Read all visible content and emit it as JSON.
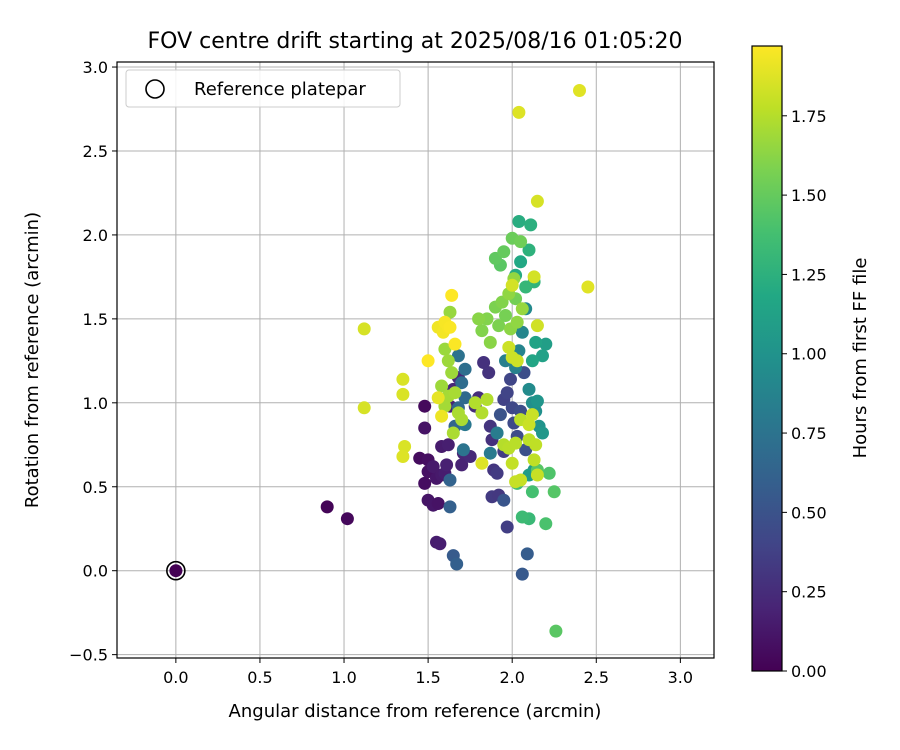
{
  "chart_data": {
    "type": "scatter",
    "title": "FOV centre drift starting at 2025/08/16 01:05:20",
    "xlabel": "Angular distance from reference (arcmin)",
    "ylabel": "Rotation from reference (arcmin)",
    "xlim": [
      -0.35,
      3.2
    ],
    "ylim": [
      -0.52,
      3.03
    ],
    "xticks": [
      0.0,
      0.5,
      1.0,
      1.5,
      2.0,
      2.5,
      3.0
    ],
    "xtick_labels": [
      "0.0",
      "0.5",
      "1.0",
      "1.5",
      "2.0",
      "2.5",
      "3.0"
    ],
    "yticks": [
      -0.5,
      0.0,
      0.5,
      1.0,
      1.5,
      2.0,
      2.5,
      3.0
    ],
    "ytick_labels": [
      "−0.5",
      "0.0",
      "0.5",
      "1.0",
      "1.5",
      "2.0",
      "2.5",
      "3.0"
    ],
    "grid": true,
    "legend": {
      "placement": "top-left",
      "entries": [
        "Reference platepar"
      ]
    },
    "reference_point": {
      "x": 0.0,
      "y": 0.0
    },
    "colorbar": {
      "label": "Hours from first FF file",
      "min": 0.0,
      "max": 1.97,
      "ticks": [
        0.0,
        0.25,
        0.5,
        0.75,
        1.0,
        1.25,
        1.5,
        1.75
      ],
      "tick_labels": [
        "0.00",
        "0.25",
        "0.50",
        "0.75",
        "1.00",
        "1.25",
        "1.50",
        "1.75"
      ],
      "colormap": "viridis"
    },
    "point_fields": [
      "x",
      "y",
      "hours"
    ],
    "points": [
      [
        0.0,
        0.0,
        0.0
      ],
      [
        0.9,
        0.38,
        0.02
      ],
      [
        1.02,
        0.31,
        0.04
      ],
      [
        1.48,
        0.98,
        0.05
      ],
      [
        1.45,
        0.67,
        0.06
      ],
      [
        1.5,
        0.66,
        0.08
      ],
      [
        1.48,
        0.52,
        0.07
      ],
      [
        1.5,
        0.59,
        0.09
      ],
      [
        1.48,
        0.85,
        0.1
      ],
      [
        1.5,
        0.42,
        0.11
      ],
      [
        1.53,
        0.39,
        0.12
      ],
      [
        1.56,
        0.4,
        0.1
      ],
      [
        1.55,
        0.55,
        0.12
      ],
      [
        1.53,
        0.62,
        0.14
      ],
      [
        1.55,
        0.17,
        0.15
      ],
      [
        1.57,
        0.16,
        0.16
      ],
      [
        1.58,
        0.57,
        0.14
      ],
      [
        1.6,
        0.58,
        0.16
      ],
      [
        1.61,
        0.63,
        0.18
      ],
      [
        1.58,
        0.74,
        0.15
      ],
      [
        1.62,
        0.75,
        0.17
      ],
      [
        1.63,
        0.98,
        0.19
      ],
      [
        1.7,
        0.63,
        0.2
      ],
      [
        1.71,
        0.7,
        0.21
      ],
      [
        1.65,
        1.08,
        0.22
      ],
      [
        1.68,
        1.15,
        0.24
      ],
      [
        1.75,
        0.68,
        0.23
      ],
      [
        1.78,
        0.98,
        0.25
      ],
      [
        1.8,
        1.03,
        0.26
      ],
      [
        1.83,
        1.24,
        0.28
      ],
      [
        1.86,
        1.18,
        0.29
      ],
      [
        1.87,
        0.86,
        0.3
      ],
      [
        1.88,
        0.78,
        0.27
      ],
      [
        1.89,
        0.6,
        0.31
      ],
      [
        1.88,
        0.44,
        0.33
      ],
      [
        1.92,
        0.45,
        0.32
      ],
      [
        1.91,
        0.58,
        0.34
      ],
      [
        1.95,
        0.71,
        0.35
      ],
      [
        1.97,
        0.26,
        0.36
      ],
      [
        1.95,
        1.02,
        0.38
      ],
      [
        1.97,
        1.06,
        0.4
      ],
      [
        1.99,
        1.14,
        0.41
      ],
      [
        2.0,
        0.97,
        0.42
      ],
      [
        2.01,
        0.88,
        0.44
      ],
      [
        2.03,
        0.8,
        0.45
      ],
      [
        2.05,
        0.95,
        0.46
      ],
      [
        2.07,
        1.18,
        0.47
      ],
      [
        2.08,
        0.72,
        0.48
      ],
      [
        1.93,
        0.93,
        0.5
      ],
      [
        1.95,
        0.42,
        0.52
      ],
      [
        2.06,
        -0.02,
        0.55
      ],
      [
        2.09,
        0.1,
        0.58
      ],
      [
        1.65,
        0.09,
        0.56
      ],
      [
        1.67,
        0.04,
        0.6
      ],
      [
        1.63,
        0.38,
        0.6
      ],
      [
        1.63,
        0.54,
        0.62
      ],
      [
        1.66,
        0.86,
        0.64
      ],
      [
        1.68,
        0.97,
        0.66
      ],
      [
        1.72,
        1.03,
        0.68
      ],
      [
        1.7,
        1.12,
        0.7
      ],
      [
        1.72,
        1.2,
        0.72
      ],
      [
        1.68,
        1.28,
        0.74
      ],
      [
        1.71,
        0.72,
        0.76
      ],
      [
        1.72,
        0.87,
        0.78
      ],
      [
        1.87,
        0.7,
        0.8
      ],
      [
        1.91,
        0.82,
        0.82
      ],
      [
        1.96,
        1.25,
        0.84
      ],
      [
        2.02,
        1.21,
        0.86
      ],
      [
        2.04,
        1.31,
        0.88
      ],
      [
        2.06,
        1.42,
        0.9
      ],
      [
        2.08,
        1.56,
        0.92
      ],
      [
        2.1,
        1.08,
        0.94
      ],
      [
        2.12,
        1.0,
        0.96
      ],
      [
        2.14,
        0.95,
        0.98
      ],
      [
        2.16,
        0.86,
        1.0
      ],
      [
        2.15,
        1.01,
        1.02
      ],
      [
        2.18,
        0.82,
        1.04
      ],
      [
        2.13,
        0.6,
        1.06
      ],
      [
        2.1,
        0.57,
        1.08
      ],
      [
        2.2,
        1.35,
        1.1
      ],
      [
        2.18,
        1.28,
        1.12
      ],
      [
        2.14,
        1.36,
        1.14
      ],
      [
        2.12,
        1.25,
        1.16
      ],
      [
        2.05,
        1.84,
        1.18
      ],
      [
        2.02,
        1.76,
        1.2
      ],
      [
        2.04,
        2.08,
        1.22
      ],
      [
        2.11,
        2.06,
        1.24
      ],
      [
        2.1,
        1.91,
        1.26
      ],
      [
        2.13,
        1.72,
        1.28
      ],
      [
        2.08,
        1.69,
        1.3
      ],
      [
        2.1,
        0.31,
        1.32
      ],
      [
        2.06,
        0.32,
        1.34
      ],
      [
        2.03,
        0.52,
        1.36
      ],
      [
        2.12,
        0.47,
        1.38
      ],
      [
        2.2,
        0.28,
        1.4
      ],
      [
        2.22,
        0.58,
        1.42
      ],
      [
        2.25,
        0.47,
        1.44
      ],
      [
        2.26,
        -0.36,
        1.46
      ],
      [
        2.15,
        0.6,
        1.45
      ],
      [
        1.93,
        1.82,
        1.46
      ],
      [
        1.9,
        1.86,
        1.48
      ],
      [
        1.95,
        1.9,
        1.5
      ],
      [
        2.0,
        1.98,
        1.52
      ],
      [
        2.05,
        1.96,
        1.54
      ],
      [
        2.02,
        1.62,
        1.55
      ],
      [
        1.96,
        1.52,
        1.56
      ],
      [
        1.92,
        1.46,
        1.58
      ],
      [
        1.9,
        1.57,
        1.58
      ],
      [
        1.94,
        1.6,
        1.6
      ],
      [
        1.85,
        1.5,
        1.6
      ],
      [
        1.82,
        1.43,
        1.6
      ],
      [
        1.8,
        1.5,
        1.62
      ],
      [
        1.87,
        1.36,
        1.62
      ],
      [
        1.99,
        1.44,
        1.63
      ],
      [
        2.03,
        1.48,
        1.64
      ],
      [
        1.98,
        1.65,
        1.64
      ],
      [
        2.01,
        1.74,
        1.65
      ],
      [
        2.06,
        1.56,
        1.66
      ],
      [
        1.63,
        1.54,
        1.66
      ],
      [
        1.6,
        1.32,
        1.67
      ],
      [
        1.62,
        1.25,
        1.68
      ],
      [
        1.64,
        1.18,
        1.68
      ],
      [
        1.58,
        1.1,
        1.68
      ],
      [
        1.62,
        1.04,
        1.7
      ],
      [
        1.6,
        0.98,
        1.7
      ],
      [
        1.66,
        1.06,
        1.71
      ],
      [
        1.68,
        0.94,
        1.72
      ],
      [
        1.65,
        0.82,
        1.72
      ],
      [
        1.7,
        0.9,
        1.72
      ],
      [
        1.78,
        1.0,
        1.74
      ],
      [
        1.85,
        1.02,
        1.74
      ],
      [
        1.82,
        0.94,
        1.74
      ],
      [
        1.95,
        0.75,
        1.75
      ],
      [
        1.98,
        0.73,
        1.76
      ],
      [
        2.02,
        0.76,
        1.76
      ],
      [
        2.05,
        0.9,
        1.77
      ],
      [
        2.1,
        0.78,
        1.77
      ],
      [
        2.14,
        0.75,
        1.78
      ],
      [
        2.13,
        0.66,
        1.78
      ],
      [
        2.0,
        0.64,
        1.79
      ],
      [
        2.02,
        0.53,
        1.8
      ],
      [
        2.05,
        0.54,
        1.8
      ],
      [
        2.15,
        0.57,
        1.8
      ],
      [
        2.1,
        0.87,
        1.81
      ],
      [
        2.12,
        0.93,
        1.81
      ],
      [
        2.0,
        1.27,
        1.82
      ],
      [
        1.98,
        1.33,
        1.82
      ],
      [
        2.03,
        1.25,
        1.82
      ],
      [
        2.15,
        1.46,
        1.83
      ],
      [
        2.0,
        1.7,
        1.84
      ],
      [
        2.13,
        1.75,
        1.84
      ],
      [
        2.15,
        2.2,
        1.85
      ],
      [
        1.12,
        1.44,
        1.85
      ],
      [
        1.12,
        0.97,
        1.85
      ],
      [
        1.35,
        1.14,
        1.86
      ],
      [
        1.35,
        1.05,
        1.86
      ],
      [
        1.36,
        0.74,
        1.86
      ],
      [
        1.35,
        0.68,
        1.87
      ],
      [
        1.82,
        0.64,
        1.87
      ],
      [
        2.04,
        2.73,
        1.87
      ],
      [
        2.4,
        2.86,
        1.88
      ],
      [
        2.45,
        1.69,
        1.88
      ],
      [
        1.56,
        1.03,
        1.9
      ],
      [
        1.58,
        0.92,
        1.92
      ],
      [
        1.56,
        1.45,
        1.93
      ],
      [
        1.59,
        1.42,
        1.94
      ],
      [
        1.6,
        1.48,
        1.95
      ],
      [
        1.62,
        1.45,
        1.95
      ],
      [
        1.66,
        1.35,
        1.96
      ],
      [
        1.63,
        1.45,
        1.96
      ],
      [
        1.5,
        1.25,
        1.97
      ],
      [
        1.64,
        1.64,
        1.97
      ]
    ]
  }
}
